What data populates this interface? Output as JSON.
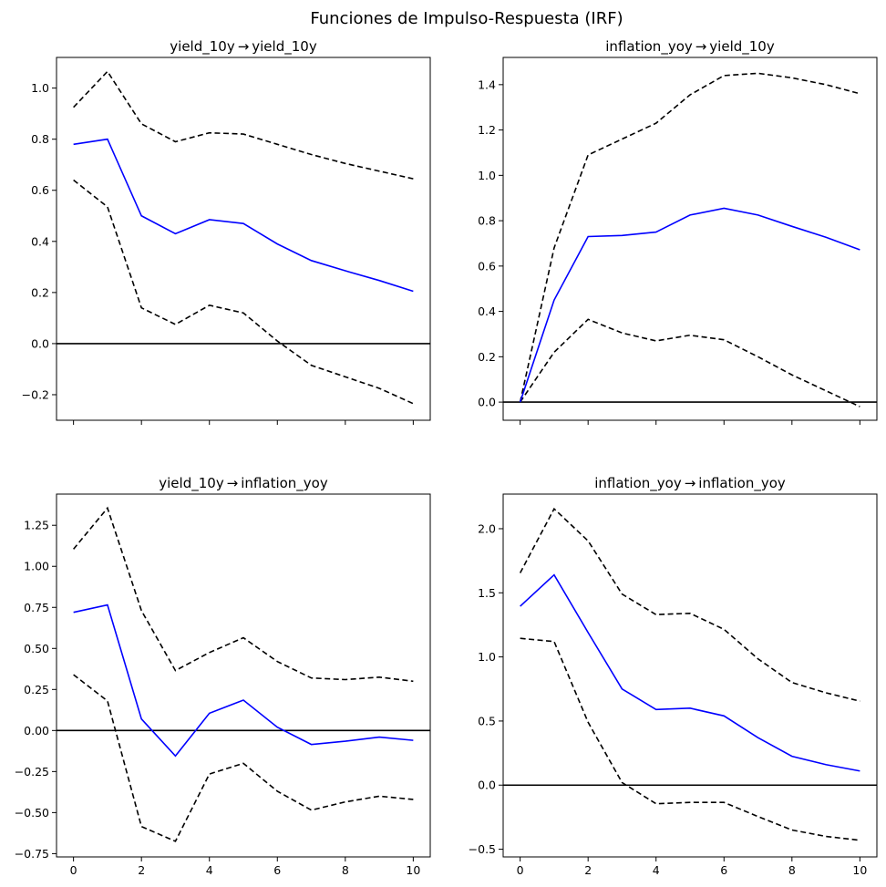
{
  "figure": {
    "title": "Funciones de Impulso-Respuesta (IRF)"
  },
  "chart_data": [
    {
      "type": "line",
      "title": "yield_10y → yield_10y",
      "x": [
        0,
        1,
        2,
        3,
        4,
        5,
        6,
        7,
        8,
        9,
        10
      ],
      "xlim": [
        -0.5,
        10.5
      ],
      "ylim": [
        -0.3,
        1.12
      ],
      "xticks": [
        0,
        2,
        4,
        6,
        8,
        10
      ],
      "yticks": [
        -0.2,
        0.0,
        0.2,
        0.4,
        0.6,
        0.8,
        1.0
      ],
      "ytick_labels": [
        "−0.2",
        "0.0",
        "0.2",
        "0.4",
        "0.6",
        "0.8",
        "1.0"
      ],
      "show_xtick_labels": false,
      "zero_line": true,
      "series": [
        {
          "role": "irf",
          "color": "#0000ff",
          "style": "solid",
          "values": [
            0.78,
            0.8,
            0.5,
            0.43,
            0.485,
            0.47,
            0.39,
            0.325,
            0.285,
            0.247,
            0.205
          ]
        },
        {
          "role": "upper",
          "color": "#000000",
          "style": "dashed",
          "values": [
            0.925,
            1.065,
            0.86,
            0.79,
            0.825,
            0.82,
            0.78,
            0.74,
            0.705,
            0.675,
            0.645
          ]
        },
        {
          "role": "lower",
          "color": "#000000",
          "style": "dashed",
          "values": [
            0.64,
            0.535,
            0.14,
            0.075,
            0.15,
            0.12,
            0.01,
            -0.085,
            -0.13,
            -0.175,
            -0.235
          ]
        }
      ]
    },
    {
      "type": "line",
      "title": "inflation_yoy → yield_10y",
      "x": [
        0,
        1,
        2,
        3,
        4,
        5,
        6,
        7,
        8,
        9,
        10
      ],
      "xlim": [
        -0.5,
        10.5
      ],
      "ylim": [
        -0.08,
        1.52
      ],
      "xticks": [
        0,
        2,
        4,
        6,
        8,
        10
      ],
      "yticks": [
        0.0,
        0.2,
        0.4,
        0.6,
        0.8,
        1.0,
        1.2,
        1.4
      ],
      "ytick_labels": [
        "0.0",
        "0.2",
        "0.4",
        "0.6",
        "0.8",
        "1.0",
        "1.2",
        "1.4"
      ],
      "show_xtick_labels": false,
      "zero_line": true,
      "series": [
        {
          "role": "irf",
          "color": "#0000ff",
          "style": "solid",
          "values": [
            0.0,
            0.45,
            0.73,
            0.735,
            0.75,
            0.825,
            0.855,
            0.825,
            0.775,
            0.727,
            0.672
          ]
        },
        {
          "role": "upper",
          "color": "#000000",
          "style": "dashed",
          "values": [
            0.0,
            0.68,
            1.09,
            1.16,
            1.23,
            1.355,
            1.44,
            1.45,
            1.43,
            1.4,
            1.36
          ]
        },
        {
          "role": "lower",
          "color": "#000000",
          "style": "dashed",
          "values": [
            0.0,
            0.22,
            0.365,
            0.305,
            0.27,
            0.295,
            0.275,
            0.2,
            0.12,
            0.05,
            -0.02
          ]
        }
      ]
    },
    {
      "type": "line",
      "title": "yield_10y → inflation_yoy",
      "x": [
        0,
        1,
        2,
        3,
        4,
        5,
        6,
        7,
        8,
        9,
        10
      ],
      "xlim": [
        -0.5,
        10.5
      ],
      "ylim": [
        -0.77,
        1.44
      ],
      "xticks": [
        0,
        2,
        4,
        6,
        8,
        10
      ],
      "xtick_labels": [
        "0",
        "2",
        "4",
        "6",
        "8",
        "10"
      ],
      "yticks": [
        -0.75,
        -0.5,
        -0.25,
        0.0,
        0.25,
        0.5,
        0.75,
        1.0,
        1.25
      ],
      "ytick_labels": [
        "−0.75",
        "−0.50",
        "−0.25",
        "0.00",
        "0.25",
        "0.50",
        "0.75",
        "1.00",
        "1.25"
      ],
      "show_xtick_labels": true,
      "zero_line": true,
      "series": [
        {
          "role": "irf",
          "color": "#0000ff",
          "style": "solid",
          "values": [
            0.72,
            0.765,
            0.07,
            -0.155,
            0.105,
            0.185,
            0.02,
            -0.085,
            -0.065,
            -0.04,
            -0.06
          ]
        },
        {
          "role": "upper",
          "color": "#000000",
          "style": "dashed",
          "values": [
            1.105,
            1.355,
            0.73,
            0.365,
            0.475,
            0.565,
            0.42,
            0.32,
            0.31,
            0.325,
            0.3
          ]
        },
        {
          "role": "lower",
          "color": "#000000",
          "style": "dashed",
          "values": [
            0.34,
            0.18,
            -0.585,
            -0.675,
            -0.265,
            -0.2,
            -0.37,
            -0.485,
            -0.435,
            -0.4,
            -0.42
          ]
        }
      ]
    },
    {
      "type": "line",
      "title": "inflation_yoy → inflation_yoy",
      "x": [
        0,
        1,
        2,
        3,
        4,
        5,
        6,
        7,
        8,
        9,
        10
      ],
      "xlim": [
        -0.5,
        10.5
      ],
      "ylim": [
        -0.56,
        2.27
      ],
      "xticks": [
        0,
        2,
        4,
        6,
        8,
        10
      ],
      "xtick_labels": [
        "0",
        "2",
        "4",
        "6",
        "8",
        "10"
      ],
      "yticks": [
        -0.5,
        0.0,
        0.5,
        1.0,
        1.5,
        2.0
      ],
      "ytick_labels": [
        "−0.5",
        "0.0",
        "0.5",
        "1.0",
        "1.5",
        "2.0"
      ],
      "show_xtick_labels": true,
      "zero_line": true,
      "series": [
        {
          "role": "irf",
          "color": "#0000ff",
          "style": "solid",
          "values": [
            1.395,
            1.64,
            1.19,
            0.75,
            0.59,
            0.6,
            0.54,
            0.37,
            0.225,
            0.16,
            0.11
          ]
        },
        {
          "role": "upper",
          "color": "#000000",
          "style": "dashed",
          "values": [
            1.655,
            2.155,
            1.905,
            1.49,
            1.33,
            1.34,
            1.215,
            0.985,
            0.8,
            0.72,
            0.655
          ]
        },
        {
          "role": "lower",
          "color": "#000000",
          "style": "dashed",
          "values": [
            1.145,
            1.12,
            0.49,
            0.02,
            -0.145,
            -0.135,
            -0.135,
            -0.245,
            -0.35,
            -0.4,
            -0.43
          ]
        }
      ]
    }
  ]
}
